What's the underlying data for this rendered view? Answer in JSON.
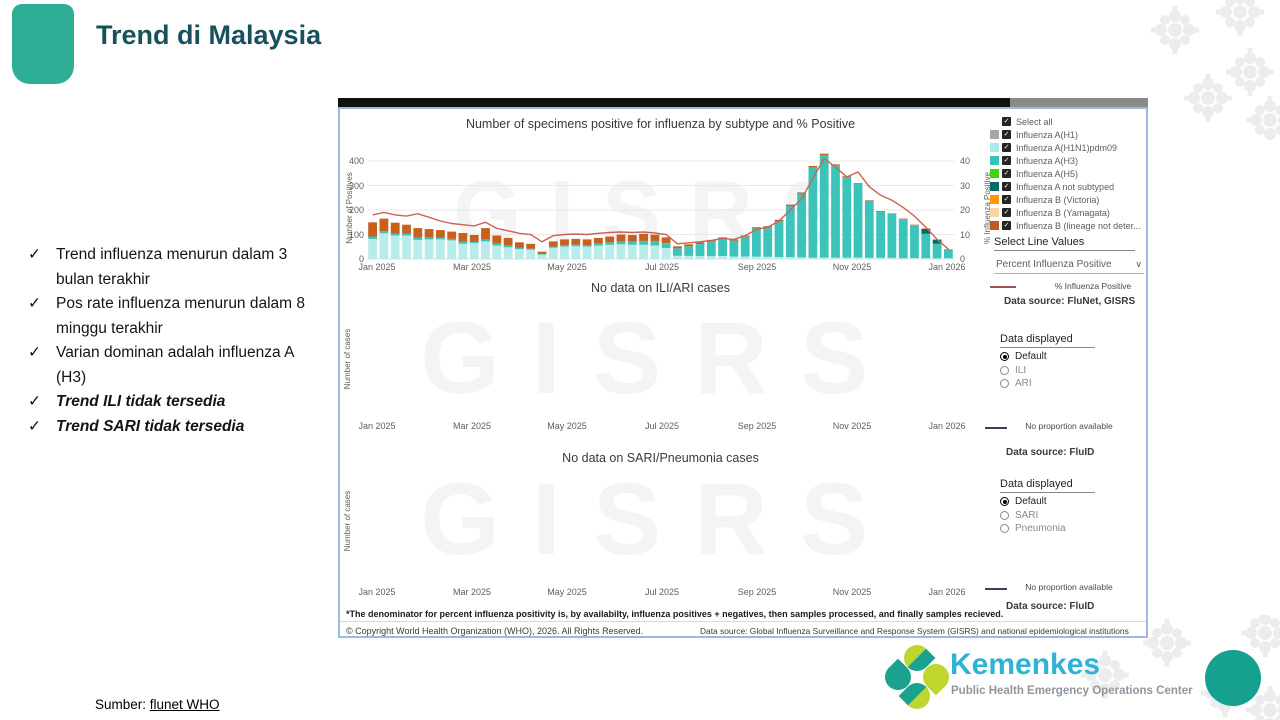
{
  "colors": {
    "accent": "#2fae96",
    "title": "#17525c",
    "kemenkes-cyan": "#2eb3d4",
    "tagline-gray": "#8e969d",
    "circle-teal": "#16a090"
  },
  "slide": {
    "title": "Trend di Malaysia",
    "bullet_glyph": "✓",
    "bullets": [
      {
        "text": "Trend influenza menurun dalam 3 bulan terakhir",
        "emphasis": false
      },
      {
        "text": "Pos rate influenza menurun dalam 8 minggu terakhir",
        "emphasis": false
      },
      {
        "text": "Varian dominan adalah influenza A (H3)",
        "emphasis": false
      },
      {
        "text": "Trend ILI tidak tersedia",
        "emphasis": true
      },
      {
        "text": "Trend SARI tidak tersedia",
        "emphasis": true
      }
    ],
    "source_label": "Sumber: ",
    "source_link": "flunet WHO"
  },
  "footer_logo": {
    "brand": "Kemenkes",
    "tagline": "Public Health Emergency Operations Center"
  },
  "report": {
    "watermark": "GISRS",
    "legend": {
      "items": [
        {
          "label": "Select all",
          "color": null,
          "checked": true
        },
        {
          "label": "Influenza A(H1)",
          "color": "#a6a6a6",
          "checked": true
        },
        {
          "label": "Influenza A(H1N1)pdm09",
          "color": "#aeebe8",
          "checked": true
        },
        {
          "label": "Influenza A(H3)",
          "color": "#35c3ba",
          "checked": true
        },
        {
          "label": "Influenza A(H5)",
          "color": "#45d40c",
          "checked": true
        },
        {
          "label": "Influenza A not subtyped",
          "color": "#056b67",
          "checked": true
        },
        {
          "label": "Influenza B (Victoria)",
          "color": "#ff9800",
          "checked": true
        },
        {
          "label": "Influenza B (Yamagata)",
          "color": "#f7d6a5",
          "checked": true
        },
        {
          "label": "Influenza B (lineage not deter...",
          "color": "#c1591b",
          "checked": true
        }
      ]
    },
    "line_values": {
      "header": "Select Line Values",
      "selected": "Percent Influenza Positive",
      "chevron": "∨",
      "line_label": "% Influenza Positive"
    },
    "datasource1": "Data source: FluNet, GISRS",
    "ili_panel": {
      "header": "Data displayed",
      "options": [
        "Default",
        "ILI",
        "ARI"
      ],
      "selected": "Default",
      "no_data_label": "No proportion available",
      "datasource": "Data source: FluID"
    },
    "sari_panel": {
      "header": "Data displayed",
      "options": [
        "Default",
        "SARI",
        "Pneumonia"
      ],
      "selected": "Default",
      "no_data_label": "No proportion available",
      "datasource": "Data source: FluID"
    },
    "footnote": "*The denominator for percent influenza positivity is, by availabilty, influenza positives + negatives, then samples processed, and finally samples recieved.",
    "copyright": "© Copyright World Health Organization (WHO), 2026. All Rights Reserved.",
    "datasource_footer": "Data source: Global Influenza Surveillance and Response System (GISRS) and national epidemiological institutions"
  },
  "chart_data": [
    {
      "type": "bar",
      "title": "Number of specimens positive for influenza by subtype and % Positive",
      "x_unit": "epidemiological weeks, Jan 2025 - Jan 2026",
      "x_ticks": [
        "Jan 2025",
        "Mar 2025",
        "May 2025",
        "Jul 2025",
        "Sep 2025",
        "Nov 2025",
        "Jan 2026"
      ],
      "ylabel_left": "Number of Positives",
      "ylabel_right": "% Influenza Positive",
      "ylim_left": [
        0,
        400
      ],
      "ylim_right": [
        0,
        40
      ],
      "y_ticks_left": [
        "0",
        "100",
        "200",
        "300",
        "400"
      ],
      "y_ticks_right": [
        "0",
        "10",
        "20",
        "30",
        "40"
      ],
      "grid_values": [
        100,
        200,
        300,
        400
      ],
      "legend_position": "right",
      "grid": true,
      "series": [
        {
          "name": "Influenza A(H1N1)pdm09",
          "color": "#b8eceb",
          "values": [
            82,
            105,
            96,
            96,
            78,
            80,
            80,
            76,
            62,
            65,
            72,
            55,
            48,
            40,
            38,
            18,
            46,
            50,
            52,
            50,
            55,
            58,
            60,
            58,
            58,
            55,
            45,
            13,
            13,
            12,
            12,
            12,
            10,
            10,
            10,
            9,
            8,
            8,
            7,
            6,
            6,
            6,
            5,
            5,
            5,
            5,
            5,
            4,
            4,
            4,
            3,
            3
          ]
        },
        {
          "name": "Influenza A(H3)",
          "color": "#3cc4bb",
          "values": [
            10,
            8,
            8,
            8,
            9,
            8,
            7,
            6,
            9,
            5,
            8,
            8,
            6,
            5,
            4,
            3,
            5,
            7,
            7,
            7,
            8,
            10,
            12,
            14,
            16,
            18,
            20,
            31,
            39,
            49,
            60,
            70,
            65,
            81,
            115,
            120,
            147,
            208,
            260,
            368,
            418,
            375,
            330,
            303,
            233,
            189,
            179,
            159,
            134,
            99,
            59,
            36
          ]
        },
        {
          "name": "Influenza A not subtyped",
          "color": "#056b67",
          "values": [
            0,
            0,
            0,
            0,
            0,
            0,
            0,
            0,
            0,
            0,
            0,
            0,
            0,
            0,
            0,
            0,
            0,
            0,
            0,
            0,
            0,
            0,
            0,
            0,
            0,
            0,
            0,
            0,
            0,
            0,
            0,
            0,
            0,
            0,
            0,
            0,
            0,
            0,
            0,
            0,
            0,
            0,
            0,
            0,
            0,
            0,
            0,
            0,
            0,
            20,
            16,
            0
          ]
        },
        {
          "name": "Influenza B (lineage not determined)",
          "color": "#c75f1d",
          "values": [
            58,
            52,
            44,
            36,
            39,
            34,
            31,
            30,
            35,
            28,
            46,
            33,
            32,
            23,
            20,
            9,
            21,
            23,
            23,
            23,
            23,
            24,
            28,
            26,
            29,
            26,
            23,
            8,
            8,
            7,
            6,
            6,
            5,
            5,
            5,
            5,
            5,
            6,
            5,
            6,
            6,
            5,
            3,
            2,
            2,
            2,
            2,
            2,
            2,
            2,
            2,
            1
          ]
        }
      ],
      "line": {
        "name": "% Influenza Positive",
        "color": "#cc6256",
        "values": [
          18,
          19,
          18,
          17.5,
          18.5,
          17,
          15.5,
          14.5,
          14,
          13.5,
          15,
          12.5,
          11.5,
          10.5,
          10,
          7,
          9.5,
          10,
          10.2,
          10,
          10.5,
          10.8,
          11,
          10.8,
          11,
          10.6,
          10,
          6.2,
          6.6,
          7,
          7.6,
          8.4,
          8,
          9.6,
          12,
          13,
          15.5,
          20,
          24.5,
          33,
          41,
          37.5,
          33.5,
          35.5,
          29.5,
          26,
          24,
          21,
          17.5,
          13,
          8,
          4
        ]
      }
    },
    {
      "type": "bar",
      "title": "No data on ILI/ARI cases",
      "ylabel": "Number of cases",
      "x_ticks": [
        "Jan 2025",
        "Mar 2025",
        "May 2025",
        "Jul 2025",
        "Sep 2025",
        "Nov 2025",
        "Jan 2026"
      ],
      "values": [],
      "note": "no data shown"
    },
    {
      "type": "bar",
      "title": "No data on SARI/Pneumonia cases",
      "ylabel": "Number of cases",
      "x_ticks": [
        "Jan 2025",
        "Mar 2025",
        "May 2025",
        "Jul 2025",
        "Sep 2025",
        "Nov 2025",
        "Jan 2026"
      ],
      "values": [],
      "note": "no data shown"
    }
  ]
}
